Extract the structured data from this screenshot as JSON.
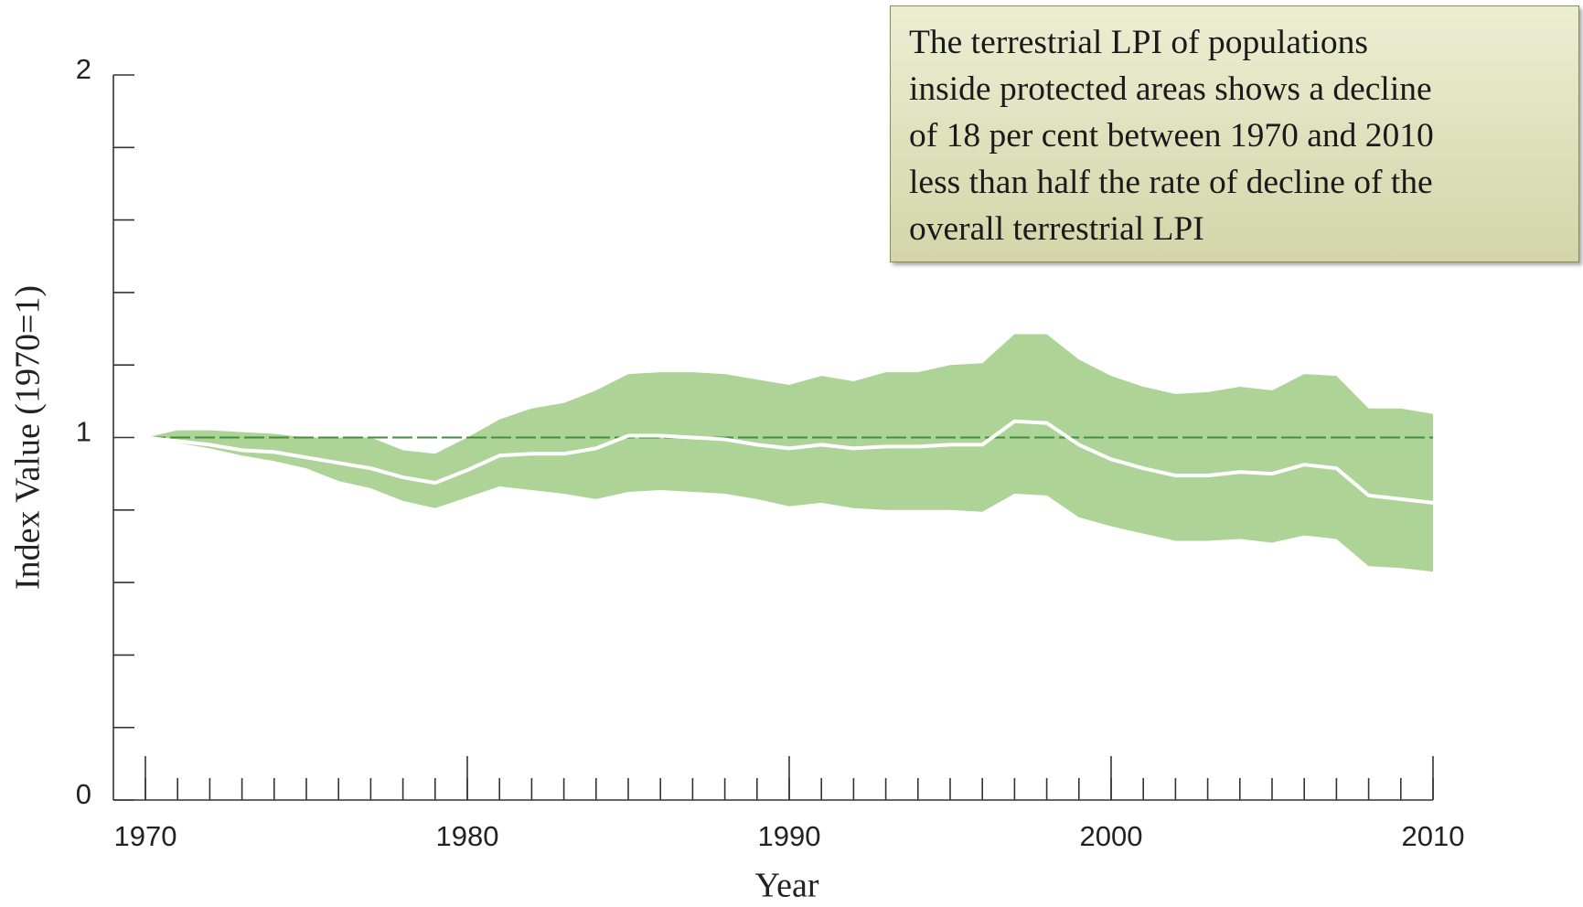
{
  "chart_data": {
    "type": "line_band",
    "annotation": [
      "The terrestrial LPI of populations",
      "inside protected areas shows a decline",
      "of 18 per cent between 1970 and 2010",
      "less than half the rate of decline of the",
      "overall terrestrial LPI"
    ],
    "xlabel": "Year",
    "ylabel": "Index Value (1970=1)",
    "x": [
      1970,
      1971,
      1972,
      1973,
      1974,
      1975,
      1976,
      1977,
      1978,
      1979,
      1980,
      1981,
      1982,
      1983,
      1984,
      1985,
      1986,
      1987,
      1988,
      1989,
      1990,
      1991,
      1992,
      1993,
      1994,
      1995,
      1996,
      1997,
      1998,
      1999,
      2000,
      2001,
      2002,
      2003,
      2004,
      2005,
      2006,
      2007,
      2008,
      2009,
      2010
    ],
    "values": [
      1.0,
      0.99,
      0.98,
      0.965,
      0.96,
      0.945,
      0.93,
      0.915,
      0.89,
      0.875,
      0.91,
      0.95,
      0.955,
      0.955,
      0.97,
      1.005,
      1.005,
      1.0,
      0.995,
      0.98,
      0.97,
      0.98,
      0.97,
      0.975,
      0.975,
      0.98,
      0.98,
      1.045,
      1.04,
      0.98,
      0.94,
      0.915,
      0.895,
      0.895,
      0.905,
      0.9,
      0.925,
      0.915,
      0.84,
      0.83,
      0.82
    ],
    "upper": [
      1.0,
      1.02,
      1.02,
      1.015,
      1.01,
      1.0,
      1.0,
      1.0,
      0.965,
      0.955,
      1.0,
      1.05,
      1.08,
      1.095,
      1.13,
      1.175,
      1.18,
      1.18,
      1.175,
      1.16,
      1.145,
      1.17,
      1.155,
      1.18,
      1.18,
      1.2,
      1.205,
      1.285,
      1.285,
      1.215,
      1.17,
      1.14,
      1.12,
      1.125,
      1.14,
      1.13,
      1.175,
      1.17,
      1.08,
      1.08,
      1.065
    ],
    "lower": [
      1.0,
      0.985,
      0.97,
      0.95,
      0.935,
      0.915,
      0.88,
      0.86,
      0.825,
      0.805,
      0.835,
      0.865,
      0.855,
      0.845,
      0.83,
      0.85,
      0.855,
      0.85,
      0.845,
      0.83,
      0.81,
      0.82,
      0.805,
      0.8,
      0.8,
      0.8,
      0.795,
      0.845,
      0.84,
      0.78,
      0.755,
      0.735,
      0.715,
      0.715,
      0.72,
      0.71,
      0.73,
      0.72,
      0.645,
      0.64,
      0.63
    ],
    "line_color": "#ffffff",
    "band_color": "#aed396",
    "reference_line": 1,
    "reference_color": "#3f8f3f",
    "xlim": [
      1970,
      2010
    ],
    "xticks": [
      1970,
      1980,
      1990,
      2000,
      2010
    ],
    "ylim": [
      0,
      2
    ],
    "yticks": [
      0,
      1,
      2
    ],
    "yminor_ticks": [
      0.2,
      0.4,
      0.6,
      0.8,
      1.2,
      1.4,
      1.6,
      1.8
    ]
  }
}
